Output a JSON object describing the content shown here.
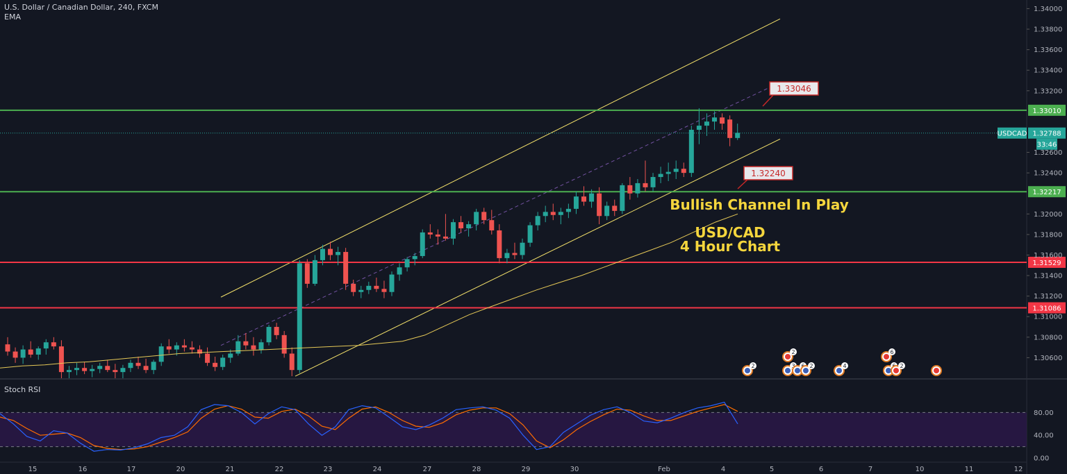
{
  "header": {
    "title": "U.S. Dollar / Canadian Dollar, 240, FXCM",
    "indicator": "EMA",
    "osc_label": "Stoch RSI"
  },
  "colors": {
    "background": "#131722",
    "bull": "#26a69a",
    "bear": "#ef5350",
    "green_level": "#4caf50",
    "red_level": "#f23645",
    "channel": "#f5e26b",
    "annotation": "#f5d63d",
    "stoch_k": "#2962ff",
    "stoch_d": "#ff6d00",
    "osc_band": "#2a1846"
  },
  "chart_data": {
    "type": "candlestick",
    "symbol": "USDCAD",
    "timeframe": "240",
    "current_price": "1.32788",
    "countdown": "33:46",
    "y_ticks": [
      "1.34000",
      "1.33800",
      "1.33600",
      "1.33400",
      "1.33200",
      "1.32600",
      "1.32400",
      "1.32000",
      "1.31800",
      "1.31600",
      "1.31400",
      "1.31200",
      "1.31000",
      "1.30800",
      "1.30600"
    ],
    "ylim": [
      1.304,
      1.3403
    ],
    "x_ticks": [
      "15",
      "16",
      "17",
      "20",
      "21",
      "22",
      "23",
      "24",
      "27",
      "28",
      "29",
      "30",
      "Feb",
      "4",
      "5",
      "6",
      "7",
      "10",
      "11",
      "12"
    ],
    "levels": [
      {
        "value": 1.3301,
        "label": "1.33010",
        "color": "green"
      },
      {
        "value": 1.32217,
        "label": "1.32217",
        "color": "green"
      },
      {
        "value": 1.31529,
        "label": "1.31529",
        "color": "red"
      },
      {
        "value": 1.31086,
        "label": "1.31086",
        "color": "red"
      }
    ],
    "callouts": [
      "1.33046",
      "1.32240"
    ],
    "annotations": [
      "Bullish Channel In Play",
      "USD/CAD",
      "4 Hour Chart"
    ],
    "candles": [
      [
        1.3073,
        1.308,
        1.3062,
        1.3066
      ],
      [
        1.3066,
        1.307,
        1.3055,
        1.306
      ],
      [
        1.306,
        1.3072,
        1.3054,
        1.3068
      ],
      [
        1.3068,
        1.3076,
        1.306,
        1.3063
      ],
      [
        1.3063,
        1.3071,
        1.3058,
        1.3069
      ],
      [
        1.3069,
        1.3078,
        1.3063,
        1.3075
      ],
      [
        1.3075,
        1.308,
        1.3068,
        1.3071
      ],
      [
        1.3071,
        1.3077,
        1.304,
        1.3046
      ],
      [
        1.3046,
        1.3052,
        1.304,
        1.3048
      ],
      [
        1.3048,
        1.3055,
        1.3043,
        1.305
      ],
      [
        1.305,
        1.3056,
        1.3044,
        1.3047
      ],
      [
        1.3047,
        1.3053,
        1.3041,
        1.3049
      ],
      [
        1.3049,
        1.3055,
        1.3045,
        1.3052
      ],
      [
        1.3052,
        1.3058,
        1.3046,
        1.3048
      ],
      [
        1.3048,
        1.3054,
        1.304,
        1.3046
      ],
      [
        1.3046,
        1.3053,
        1.304,
        1.305
      ],
      [
        1.305,
        1.3058,
        1.3046,
        1.3055
      ],
      [
        1.3055,
        1.3061,
        1.3049,
        1.3052
      ],
      [
        1.3052,
        1.3059,
        1.3045,
        1.3048
      ],
      [
        1.3048,
        1.3058,
        1.3044,
        1.3056
      ],
      [
        1.3056,
        1.3074,
        1.3052,
        1.3071
      ],
      [
        1.3071,
        1.3078,
        1.3064,
        1.3068
      ],
      [
        1.3068,
        1.3075,
        1.3062,
        1.3072
      ],
      [
        1.3072,
        1.3078,
        1.3066,
        1.307
      ],
      [
        1.307,
        1.3076,
        1.3064,
        1.3068
      ],
      [
        1.3068,
        1.3072,
        1.306,
        1.3064
      ],
      [
        1.3064,
        1.307,
        1.3052,
        1.3055
      ],
      [
        1.3055,
        1.3061,
        1.3047,
        1.3051
      ],
      [
        1.3051,
        1.3063,
        1.3048,
        1.306
      ],
      [
        1.306,
        1.3068,
        1.3055,
        1.3064
      ],
      [
        1.3064,
        1.3082,
        1.3062,
        1.3076
      ],
      [
        1.3076,
        1.3084,
        1.3068,
        1.3072
      ],
      [
        1.3072,
        1.308,
        1.3062,
        1.3068
      ],
      [
        1.3068,
        1.3078,
        1.3064,
        1.3075
      ],
      [
        1.3075,
        1.3092,
        1.3072,
        1.309
      ],
      [
        1.309,
        1.3094,
        1.3078,
        1.3082
      ],
      [
        1.3082,
        1.3086,
        1.306,
        1.3064
      ],
      [
        1.3064,
        1.307,
        1.3042,
        1.3048
      ],
      [
        1.3048,
        1.3155,
        1.3045,
        1.3152
      ],
      [
        1.3152,
        1.3156,
        1.3128,
        1.3132
      ],
      [
        1.3132,
        1.316,
        1.313,
        1.3155
      ],
      [
        1.3155,
        1.317,
        1.315,
        1.3166
      ],
      [
        1.3166,
        1.3173,
        1.3155,
        1.316
      ],
      [
        1.316,
        1.3168,
        1.315,
        1.3163
      ],
      [
        1.3163,
        1.3167,
        1.3126,
        1.3132
      ],
      [
        1.3132,
        1.3136,
        1.312,
        1.3124
      ],
      [
        1.3124,
        1.313,
        1.3118,
        1.3126
      ],
      [
        1.3126,
        1.3134,
        1.3122,
        1.313
      ],
      [
        1.313,
        1.3138,
        1.3124,
        1.3127
      ],
      [
        1.3127,
        1.3135,
        1.3118,
        1.3124
      ],
      [
        1.3124,
        1.3144,
        1.312,
        1.3141
      ],
      [
        1.3141,
        1.3152,
        1.3135,
        1.3148
      ],
      [
        1.3148,
        1.3158,
        1.3144,
        1.3156
      ],
      [
        1.3156,
        1.3162,
        1.315,
        1.3159
      ],
      [
        1.3159,
        1.3185,
        1.3157,
        1.3182
      ],
      [
        1.3182,
        1.319,
        1.3176,
        1.318
      ],
      [
        1.318,
        1.3185,
        1.317,
        1.3178
      ],
      [
        1.3178,
        1.32,
        1.3174,
        1.3176
      ],
      [
        1.3176,
        1.3195,
        1.317,
        1.3192
      ],
      [
        1.3192,
        1.3198,
        1.3182,
        1.3186
      ],
      [
        1.3186,
        1.3193,
        1.3178,
        1.319
      ],
      [
        1.319,
        1.3205,
        1.3184,
        1.3202
      ],
      [
        1.3202,
        1.3206,
        1.319,
        1.3194
      ],
      [
        1.3194,
        1.3204,
        1.318,
        1.3184
      ],
      [
        1.3184,
        1.319,
        1.3152,
        1.3157
      ],
      [
        1.3157,
        1.3166,
        1.3152,
        1.3162
      ],
      [
        1.3162,
        1.3172,
        1.3156,
        1.316
      ],
      [
        1.316,
        1.3176,
        1.3156,
        1.3172
      ],
      [
        1.3172,
        1.3192,
        1.3168,
        1.3189
      ],
      [
        1.3189,
        1.3202,
        1.3184,
        1.3198
      ],
      [
        1.3198,
        1.3208,
        1.3192,
        1.3202
      ],
      [
        1.3202,
        1.321,
        1.3194,
        1.3199
      ],
      [
        1.3199,
        1.3206,
        1.319,
        1.3202
      ],
      [
        1.3202,
        1.321,
        1.3196,
        1.3205
      ],
      [
        1.3205,
        1.3222,
        1.32,
        1.3217
      ],
      [
        1.3217,
        1.3227,
        1.3208,
        1.3212
      ],
      [
        1.3212,
        1.3224,
        1.3206,
        1.322
      ],
      [
        1.322,
        1.3226,
        1.319,
        1.3198
      ],
      [
        1.3198,
        1.3212,
        1.3194,
        1.3208
      ],
      [
        1.3208,
        1.3214,
        1.3198,
        1.3203
      ],
      [
        1.3203,
        1.323,
        1.32,
        1.3228
      ],
      [
        1.3228,
        1.3236,
        1.3214,
        1.322
      ],
      [
        1.322,
        1.3234,
        1.3216,
        1.323
      ],
      [
        1.323,
        1.3252,
        1.3222,
        1.3226
      ],
      [
        1.3226,
        1.324,
        1.3222,
        1.3236
      ],
      [
        1.3236,
        1.3246,
        1.323,
        1.3239
      ],
      [
        1.3239,
        1.325,
        1.3232,
        1.3241
      ],
      [
        1.3241,
        1.3252,
        1.3234,
        1.3244
      ],
      [
        1.3244,
        1.325,
        1.3236,
        1.324
      ],
      [
        1.324,
        1.3286,
        1.3236,
        1.3282
      ],
      [
        1.3282,
        1.3303,
        1.3268,
        1.3286
      ],
      [
        1.3286,
        1.3298,
        1.3276,
        1.329
      ],
      [
        1.329,
        1.33,
        1.3282,
        1.3294
      ],
      [
        1.3294,
        1.3298,
        1.3282,
        1.3288
      ],
      [
        1.3292,
        1.3296,
        1.3266,
        1.3274
      ],
      [
        1.3274,
        1.3288,
        1.3272,
        1.3279
      ]
    ],
    "ema": [
      1.305,
      1.3052,
      1.3053,
      1.3055,
      1.3056,
      1.3058,
      1.306,
      1.3062,
      1.3064,
      1.3065,
      1.3066,
      1.3067,
      1.3068,
      1.3069,
      1.307,
      1.3071,
      1.3072,
      1.3074,
      1.3076,
      1.3082,
      1.3092,
      1.3102,
      1.311,
      1.3118,
      1.3126,
      1.3133,
      1.314,
      1.3148,
      1.3156,
      1.3164,
      1.3172,
      1.3182,
      1.3192,
      1.32
    ],
    "stoch_k": [
      78,
      60,
      38,
      30,
      48,
      44,
      26,
      12,
      15,
      14,
      18,
      25,
      36,
      40,
      55,
      85,
      94,
      92,
      80,
      60,
      78,
      90,
      85,
      60,
      40,
      55,
      85,
      92,
      88,
      72,
      55,
      50,
      58,
      70,
      85,
      88,
      90,
      84,
      70,
      40,
      15,
      20,
      45,
      60,
      75,
      85,
      90,
      80,
      65,
      62,
      70,
      80,
      88,
      92,
      98,
      60
    ],
    "stoch_d": [
      72,
      66,
      52,
      40,
      42,
      44,
      36,
      22,
      17,
      15,
      16,
      20,
      28,
      36,
      46,
      70,
      86,
      92,
      86,
      72,
      70,
      82,
      86,
      74,
      56,
      50,
      70,
      86,
      90,
      80,
      66,
      56,
      54,
      62,
      76,
      84,
      88,
      88,
      78,
      58,
      30,
      18,
      32,
      50,
      64,
      76,
      86,
      84,
      74,
      66,
      66,
      74,
      82,
      88,
      94,
      82
    ],
    "osc_ticks": [
      "80.00",
      "40.00",
      "0.00"
    ]
  },
  "events": [
    {
      "label": "2",
      "flag": "US"
    },
    {
      "label": "2",
      "flag": "CA"
    },
    {
      "label": "3",
      "flag": "US"
    },
    {
      "label": "6",
      "flag": "US"
    },
    {
      "label": "2",
      "flag": "US"
    },
    {
      "label": "4",
      "flag": "US"
    },
    {
      "label": "6",
      "flag": "CA"
    },
    {
      "label": "6",
      "flag": "US"
    },
    {
      "label": "2",
      "flag": "CA"
    },
    {
      "label": "",
      "flag": "CA"
    }
  ]
}
